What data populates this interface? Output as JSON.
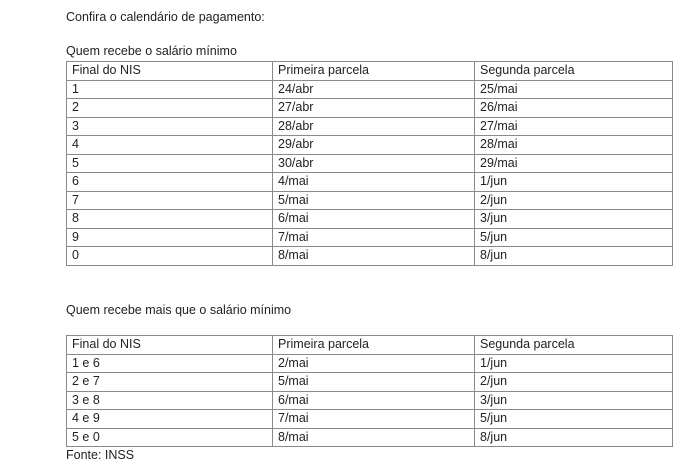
{
  "intro": "Confira o calendário de pagamento:",
  "table1": {
    "title": "Quem recebe o salário mínimo",
    "headers": [
      "Final do NIS",
      "Primeira parcela",
      "Segunda parcela"
    ],
    "rows": [
      [
        "1",
        "24/abr",
        "25/mai"
      ],
      [
        "2",
        "27/abr",
        "26/mai"
      ],
      [
        "3",
        "28/abr",
        "27/mai"
      ],
      [
        "4",
        "29/abr",
        "28/mai"
      ],
      [
        "5",
        "30/abr",
        "29/mai"
      ],
      [
        "6",
        "4/mai",
        "1/jun"
      ],
      [
        "7",
        "5/mai",
        "2/jun"
      ],
      [
        "8",
        "6/mai",
        "3/jun"
      ],
      [
        "9",
        "7/mai",
        "5/jun"
      ],
      [
        "0",
        "8/mai",
        "8/jun"
      ]
    ]
  },
  "table2": {
    "title": "Quem recebe mais que o salário mínimo",
    "headers": [
      "Final do NIS",
      "Primeira parcela",
      "Segunda parcela"
    ],
    "rows": [
      [
        "1 e 6",
        "2/mai",
        "1/jun"
      ],
      [
        "2 e 7",
        "5/mai",
        "2/jun"
      ],
      [
        "3 e 8",
        "6/mai",
        "3/jun"
      ],
      [
        "4 e 9",
        "7/mai",
        "5/jun"
      ],
      [
        "5 e 0",
        "8/mai",
        "8/jun"
      ]
    ]
  },
  "source": "Fonte: INSS"
}
